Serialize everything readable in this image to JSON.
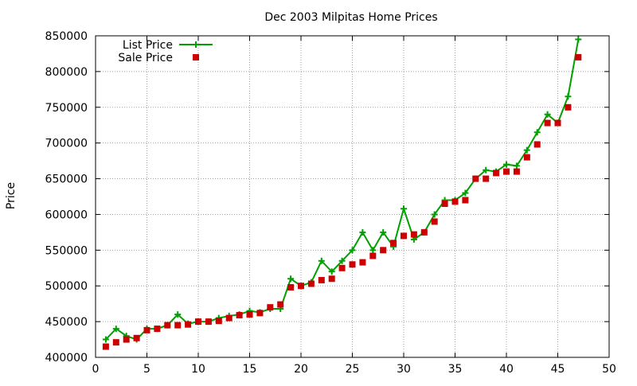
{
  "chart_data": {
    "type": "line",
    "title": "Dec 2003 Milpitas Home Prices",
    "xlabel": "",
    "ylabel": "Price",
    "xlim": [
      0,
      50
    ],
    "ylim": [
      400000,
      850000
    ],
    "xticks": [
      0,
      5,
      10,
      15,
      20,
      25,
      30,
      35,
      40,
      45,
      50
    ],
    "yticks": [
      400000,
      450000,
      500000,
      550000,
      600000,
      650000,
      700000,
      750000,
      800000,
      850000
    ],
    "grid": true,
    "legend": "top-left",
    "series": [
      {
        "name": "List Price",
        "color": "#00a000",
        "marker": "plus",
        "style": "line",
        "points": [
          [
            1,
            425000
          ],
          [
            2,
            440000
          ],
          [
            3,
            430000
          ],
          [
            4,
            425000
          ],
          [
            5,
            440000
          ],
          [
            6,
            440000
          ],
          [
            7,
            445000
          ],
          [
            8,
            460000
          ],
          [
            9,
            447000
          ],
          [
            10,
            450000
          ],
          [
            11,
            450000
          ],
          [
            12,
            455000
          ],
          [
            13,
            458000
          ],
          [
            14,
            460000
          ],
          [
            15,
            465000
          ],
          [
            16,
            463000
          ],
          [
            17,
            468000
          ],
          [
            18,
            468000
          ],
          [
            19,
            510000
          ],
          [
            20,
            500000
          ],
          [
            21,
            505000
          ],
          [
            22,
            535000
          ],
          [
            23,
            520000
          ],
          [
            24,
            535000
          ],
          [
            25,
            550000
          ],
          [
            26,
            575000
          ],
          [
            27,
            550000
          ],
          [
            28,
            575000
          ],
          [
            29,
            555000
          ],
          [
            30,
            608000
          ],
          [
            31,
            565000
          ],
          [
            32,
            575000
          ],
          [
            33,
            600000
          ],
          [
            34,
            620000
          ],
          [
            35,
            620000
          ],
          [
            36,
            630000
          ],
          [
            37,
            650000
          ],
          [
            38,
            662000
          ],
          [
            39,
            660000
          ],
          [
            40,
            670000
          ],
          [
            41,
            668000
          ],
          [
            42,
            690000
          ],
          [
            43,
            715000
          ],
          [
            44,
            740000
          ],
          [
            45,
            728000
          ],
          [
            46,
            765000
          ],
          [
            47,
            845000
          ]
        ]
      },
      {
        "name": "Sale Price",
        "color": "#cc0000",
        "marker": "square",
        "style": "points",
        "points": [
          [
            1,
            415000
          ],
          [
            2,
            421000
          ],
          [
            3,
            425000
          ],
          [
            4,
            427000
          ],
          [
            5,
            438000
          ],
          [
            6,
            440000
          ],
          [
            7,
            445000
          ],
          [
            8,
            445000
          ],
          [
            9,
            446000
          ],
          [
            10,
            450000
          ],
          [
            11,
            450000
          ],
          [
            12,
            451000
          ],
          [
            13,
            455000
          ],
          [
            14,
            459000
          ],
          [
            15,
            460000
          ],
          [
            16,
            462000
          ],
          [
            17,
            470000
          ],
          [
            18,
            474000
          ],
          [
            19,
            498000
          ],
          [
            20,
            500000
          ],
          [
            21,
            503000
          ],
          [
            22,
            508000
          ],
          [
            23,
            510000
          ],
          [
            24,
            525000
          ],
          [
            25,
            530000
          ],
          [
            26,
            533000
          ],
          [
            27,
            542000
          ],
          [
            28,
            550000
          ],
          [
            29,
            560000
          ],
          [
            30,
            570000
          ],
          [
            31,
            572000
          ],
          [
            32,
            575000
          ],
          [
            33,
            590000
          ],
          [
            34,
            615000
          ],
          [
            35,
            618000
          ],
          [
            36,
            620000
          ],
          [
            37,
            650000
          ],
          [
            38,
            650000
          ],
          [
            39,
            658000
          ],
          [
            40,
            660000
          ],
          [
            41,
            660000
          ],
          [
            42,
            680000
          ],
          [
            43,
            698000
          ],
          [
            44,
            728000
          ],
          [
            45,
            728000
          ],
          [
            46,
            750000
          ],
          [
            47,
            820000
          ]
        ]
      }
    ]
  }
}
